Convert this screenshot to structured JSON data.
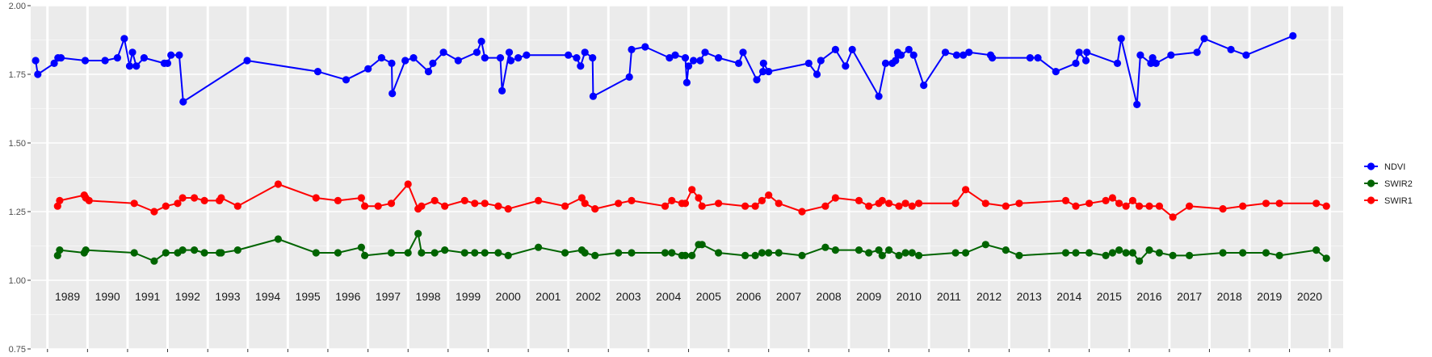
{
  "chart_data": {
    "type": "line",
    "title": "",
    "xlabel": "",
    "ylabel": "",
    "ylim": [
      0.75,
      2.0
    ],
    "y_ticks": [
      0.75,
      1.0,
      1.25,
      1.5,
      1.75,
      2.0
    ],
    "y_tick_labels": [
      "0.75",
      "1.00",
      "1.25",
      "1.50",
      "1.75",
      "2.00"
    ],
    "grid": true,
    "legend_position": "right",
    "years": [
      "1989",
      "1990",
      "1991",
      "1992",
      "1993",
      "1994",
      "1995",
      "1996",
      "1997",
      "1998",
      "1999",
      "2000",
      "2001",
      "2002",
      "2003",
      "2004",
      "2005",
      "2006",
      "2007",
      "2008",
      "2009",
      "2010",
      "2011",
      "2012",
      "2013",
      "2014",
      "2015",
      "2016",
      "2017",
      "2018",
      "2019",
      "2020"
    ],
    "series": [
      {
        "name": "NDVI",
        "color": "#0000ff",
        "x": [
          "1988-06-15",
          "1988-07-05",
          "1988-12-01",
          "1989-01-05",
          "1989-02-01",
          "1989-09-10",
          "1990-03-10",
          "1990-07-01",
          "1990-09-01",
          "1990-10-20",
          "1990-11-15",
          "1990-12-20",
          "1991-03-01",
          "1991-09-01",
          "1991-10-01",
          "1991-11-01",
          "1992-01-15",
          "1992-02-20",
          "1993-09-25",
          "1995-07-01",
          "1996-03-15",
          "1996-10-01",
          "1997-02-01",
          "1997-05-05",
          "1997-05-10",
          "1997-09-05",
          "1997-11-20",
          "1998-04-05",
          "1998-05-15",
          "1998-08-20",
          "1999-01-01",
          "1999-06-20",
          "1999-08-01",
          "1999-09-01",
          "2000-01-20",
          "2000-02-05",
          "2000-04-10",
          "2000-04-25",
          "2000-07-01",
          "2000-09-15",
          "2001-10-01",
          "2001-12-15",
          "2002-01-20",
          "2002-03-01",
          "2002-05-10",
          "2002-05-15",
          "2003-04-10",
          "2003-05-01",
          "2003-09-01",
          "2004-04-10",
          "2004-06-01",
          "2004-09-01",
          "2004-09-15",
          "2004-10-01",
          "2004-11-15",
          "2005-01-15",
          "2005-03-01",
          "2005-07-01",
          "2006-01-01",
          "2006-02-10",
          "2006-06-15",
          "2006-08-10",
          "2006-08-15",
          "2006-10-01",
          "2007-10-01",
          "2007-12-15",
          "2008-01-20",
          "2008-06-01",
          "2008-09-01",
          "2008-11-01",
          "2009-07-01",
          "2009-09-01",
          "2009-11-01",
          "2009-12-01",
          "2009-12-20",
          "2009-12-25",
          "2010-01-20",
          "2010-04-01",
          "2010-05-15",
          "2010-08-15",
          "2011-02-28",
          "2011-06-10",
          "2011-08-10",
          "2011-10-01",
          "2012-04-15",
          "2012-05-01",
          "2013-04-10",
          "2013-06-20",
          "2013-12-01",
          "2014-06-01",
          "2014-07-01",
          "2014-09-01",
          "2014-09-10",
          "2015-06-15",
          "2015-07-20",
          "2015-12-10",
          "2016-01-10",
          "2016-04-15",
          "2016-05-01",
          "2016-06-01",
          "2016-10-15",
          "2017-06-10",
          "2017-08-15",
          "2018-04-15",
          "2018-09-01",
          "2019-11-01"
        ],
        "values": [
          1.8,
          1.75,
          1.79,
          1.81,
          1.81,
          1.8,
          1.8,
          1.81,
          1.88,
          1.78,
          1.83,
          1.78,
          1.81,
          1.79,
          1.79,
          1.82,
          1.82,
          1.65,
          1.8,
          1.76,
          1.73,
          1.77,
          1.81,
          1.79,
          1.68,
          1.8,
          1.81,
          1.76,
          1.79,
          1.83,
          1.8,
          1.83,
          1.87,
          1.81,
          1.81,
          1.69,
          1.83,
          1.8,
          1.81,
          1.82,
          1.82,
          1.81,
          1.78,
          1.83,
          1.81,
          1.67,
          1.74,
          1.84,
          1.85,
          1.81,
          1.82,
          1.81,
          1.72,
          1.78,
          1.8,
          1.8,
          1.83,
          1.81,
          1.79,
          1.83,
          1.73,
          1.76,
          1.79,
          1.76,
          1.79,
          1.75,
          1.8,
          1.84,
          1.78,
          1.84,
          1.67,
          1.79,
          1.79,
          1.8,
          1.83,
          1.82,
          1.82,
          1.84,
          1.82,
          1.71,
          1.83,
          1.82,
          1.82,
          1.83,
          1.82,
          1.81,
          1.81,
          1.81,
          1.76,
          1.79,
          1.83,
          1.8,
          1.83,
          1.79,
          1.88,
          1.64,
          1.82,
          1.79,
          1.81,
          1.79,
          1.82,
          1.83,
          1.88,
          1.84,
          1.82,
          1.89
        ]
      },
      {
        "name": "SWIR2",
        "color": "#006400",
        "x": [
          "1989-01-01",
          "1989-01-20",
          "1989-09-01",
          "1989-09-15",
          "1990-12-01",
          "1991-06-01",
          "1991-09-15",
          "1992-01-01",
          "1992-02-15",
          "1992-06-01",
          "1992-09-01",
          "1993-01-15",
          "1993-02-01",
          "1993-07-01",
          "1994-07-05",
          "1995-06-15",
          "1996-01-01",
          "1996-08-01",
          "1996-09-01",
          "1997-05-01",
          "1997-10-01",
          "1998-01-01",
          "1998-02-01",
          "1998-06-01",
          "1998-09-01",
          "1999-03-01",
          "1999-06-01",
          "1999-09-01",
          "2000-01-01",
          "2000-04-01",
          "2001-01-01",
          "2001-09-01",
          "2002-02-01",
          "2002-03-01",
          "2002-06-01",
          "2003-01-01",
          "2003-05-01",
          "2004-03-01",
          "2004-05-01",
          "2004-08-01",
          "2004-09-01",
          "2004-11-01",
          "2005-01-01",
          "2005-02-01",
          "2005-07-01",
          "2006-03-01",
          "2006-06-01",
          "2006-08-01",
          "2006-10-01",
          "2007-01-01",
          "2007-08-01",
          "2008-03-01",
          "2008-06-01",
          "2009-01-01",
          "2009-04-01",
          "2009-07-01",
          "2009-08-01",
          "2009-10-01",
          "2010-01-01",
          "2010-03-01",
          "2010-05-01",
          "2010-07-01",
          "2011-06-01",
          "2011-09-01",
          "2012-03-01",
          "2012-09-01",
          "2013-01-01",
          "2014-03-01",
          "2014-06-01",
          "2014-10-01",
          "2015-03-01",
          "2015-05-01",
          "2015-07-01",
          "2015-09-01",
          "2015-11-01",
          "2016-01-01",
          "2016-04-01",
          "2016-07-01",
          "2016-11-01",
          "2017-04-01",
          "2018-02-01",
          "2018-08-01",
          "2019-03-01",
          "2019-07-01",
          "2020-06-01",
          "2020-09-01"
        ],
        "values": [
          1.09,
          1.11,
          1.1,
          1.11,
          1.1,
          1.07,
          1.1,
          1.1,
          1.11,
          1.11,
          1.1,
          1.1,
          1.1,
          1.11,
          1.15,
          1.1,
          1.1,
          1.12,
          1.09,
          1.1,
          1.1,
          1.17,
          1.1,
          1.1,
          1.11,
          1.1,
          1.1,
          1.1,
          1.1,
          1.09,
          1.12,
          1.1,
          1.11,
          1.1,
          1.09,
          1.1,
          1.1,
          1.1,
          1.1,
          1.09,
          1.09,
          1.09,
          1.13,
          1.13,
          1.1,
          1.09,
          1.09,
          1.1,
          1.1,
          1.1,
          1.09,
          1.12,
          1.11,
          1.11,
          1.1,
          1.11,
          1.09,
          1.11,
          1.09,
          1.1,
          1.1,
          1.09,
          1.1,
          1.1,
          1.13,
          1.11,
          1.09,
          1.1,
          1.1,
          1.1,
          1.09,
          1.1,
          1.11,
          1.1,
          1.1,
          1.07,
          1.11,
          1.1,
          1.09,
          1.09,
          1.1,
          1.1,
          1.1,
          1.09,
          1.11,
          1.08
        ]
      },
      {
        "name": "SWIR1",
        "color": "#ff0000",
        "x": [
          "1989-01-01",
          "1989-01-20",
          "1989-09-01",
          "1989-09-15",
          "1989-10-15",
          "1990-12-01",
          "1991-06-01",
          "1991-09-15",
          "1992-01-01",
          "1992-02-15",
          "1992-06-01",
          "1992-09-01",
          "1993-01-15",
          "1993-02-01",
          "1993-07-01",
          "1994-07-05",
          "1995-06-15",
          "1996-01-01",
          "1996-08-01",
          "1996-09-01",
          "1997-01-01",
          "1997-05-01",
          "1997-10-01",
          "1998-01-01",
          "1998-02-01",
          "1998-06-01",
          "1998-09-01",
          "1999-03-01",
          "1999-06-01",
          "1999-09-01",
          "2000-01-01",
          "2000-04-01",
          "2001-01-01",
          "2001-09-01",
          "2002-02-01",
          "2002-03-01",
          "2002-06-01",
          "2003-01-01",
          "2003-05-01",
          "2004-03-01",
          "2004-05-01",
          "2004-08-01",
          "2004-09-01",
          "2004-11-01",
          "2005-01-01",
          "2005-02-01",
          "2005-07-01",
          "2006-03-01",
          "2006-06-01",
          "2006-08-01",
          "2006-10-01",
          "2007-01-01",
          "2007-08-01",
          "2008-03-01",
          "2008-06-01",
          "2009-01-01",
          "2009-04-01",
          "2009-07-01",
          "2009-08-01",
          "2009-10-01",
          "2010-01-01",
          "2010-03-01",
          "2010-05-01",
          "2010-07-01",
          "2011-06-01",
          "2011-09-01",
          "2012-03-01",
          "2012-09-01",
          "2013-01-01",
          "2014-03-01",
          "2014-06-01",
          "2014-10-01",
          "2015-03-01",
          "2015-05-01",
          "2015-07-01",
          "2015-09-01",
          "2015-11-01",
          "2016-01-01",
          "2016-04-01",
          "2016-07-01",
          "2016-11-01",
          "2017-04-01",
          "2018-02-01",
          "2018-08-01",
          "2019-03-01",
          "2019-07-01",
          "2020-06-01",
          "2020-09-01"
        ],
        "values": [
          1.27,
          1.29,
          1.31,
          1.3,
          1.29,
          1.28,
          1.25,
          1.27,
          1.28,
          1.3,
          1.3,
          1.29,
          1.29,
          1.3,
          1.27,
          1.35,
          1.3,
          1.29,
          1.3,
          1.27,
          1.27,
          1.28,
          1.35,
          1.26,
          1.27,
          1.29,
          1.27,
          1.29,
          1.28,
          1.28,
          1.27,
          1.26,
          1.29,
          1.27,
          1.3,
          1.28,
          1.26,
          1.28,
          1.29,
          1.27,
          1.29,
          1.28,
          1.28,
          1.33,
          1.3,
          1.27,
          1.28,
          1.27,
          1.27,
          1.29,
          1.31,
          1.28,
          1.25,
          1.27,
          1.3,
          1.29,
          1.27,
          1.28,
          1.29,
          1.28,
          1.27,
          1.28,
          1.27,
          1.28,
          1.28,
          1.33,
          1.28,
          1.27,
          1.28,
          1.29,
          1.27,
          1.28,
          1.29,
          1.3,
          1.28,
          1.27,
          1.29,
          1.27,
          1.27,
          1.27,
          1.23,
          1.27,
          1.26,
          1.27,
          1.28,
          1.28,
          1.28,
          1.27
        ]
      }
    ]
  }
}
